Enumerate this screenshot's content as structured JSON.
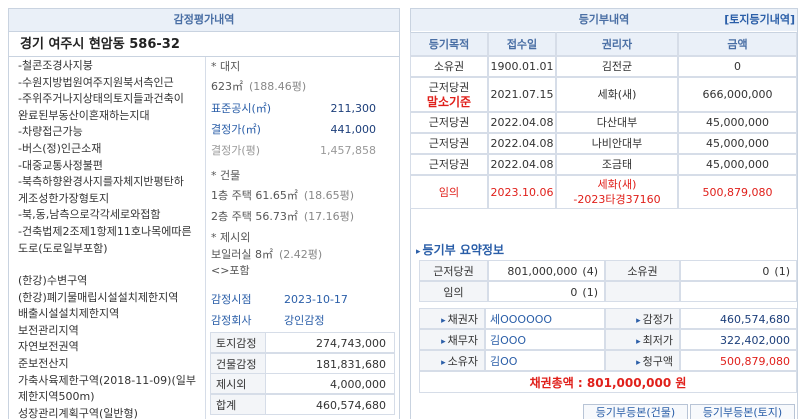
{
  "appraisal": {
    "title": "감정평가내역",
    "address": "경기 여주시 현암동 586-32",
    "notes": [
      "-철콘조경사지붕",
      "-수원지방법원여주지원북서측인근",
      "-주위주거나지상태의토지들과건축이",
      "완료된부동산이혼재하는지대",
      "-차량접근가능",
      "-버스(정)인근소재",
      "-대중교통사정불편",
      "-북측하향완경사지를자체지반평탄하",
      "게조성한가장형토지",
      "-북,동,남측으로각각세로와접함",
      "-건축법제2조제1항제11호나목에따른",
      "도로(도로일부포함)"
    ],
    "zoning": [
      "(한강)수변구역",
      "(한강)폐기물매립시설설치제한지역",
      "배출시설설치제한지역",
      "보전관리지역",
      "자연보전권역",
      "준보전산지",
      "가축사육제한구역(2018-11-09)(일부",
      "제한지역500m)",
      "성장관리계획구역(일반형)"
    ],
    "land_heading": "* 대지",
    "land_area": "623㎡",
    "land_area_pyeong": "(188.46평)",
    "land_prices": [
      [
        "표준공시(㎡)",
        "211,300"
      ],
      [
        "결정가(㎡)",
        "441,000"
      ],
      [
        "결정가(평)",
        "1,457,858"
      ]
    ],
    "building_heading": "* 건물",
    "buildings": [
      [
        "1층 주택 61.65㎡",
        "(18.65평)"
      ],
      [
        "2층 주택 56.73㎡",
        "(17.16평)"
      ]
    ],
    "extra_heading": "* 제시외",
    "extras": [
      [
        "보일러실 8㎡",
        "(2.42평)"
      ]
    ],
    "extra_note": "<>포함",
    "info": [
      [
        "감정시점",
        "2023-10-17"
      ],
      [
        "감정회사",
        "강인감정"
      ]
    ],
    "totals": [
      [
        "토지감정",
        "274,743,000"
      ],
      [
        "건물감정",
        "181,831,680"
      ],
      [
        "제시외",
        "4,000,000"
      ],
      [
        "합계",
        "460,574,680"
      ]
    ]
  },
  "registry": {
    "title": "등기부내역",
    "link": "[토지등기내역]",
    "columns": [
      "등기목적",
      "접수일",
      "권리자",
      "금액"
    ],
    "rows": [
      [
        [
          "소유권"
        ],
        [
          "1900.01.01"
        ],
        [
          "김전균"
        ],
        [
          "0"
        ]
      ],
      [
        [
          "근저당권",
          "말소기준"
        ],
        [
          "2021.07.15"
        ],
        [
          "세화(새)"
        ],
        [
          "666,000,000"
        ]
      ],
      [
        [
          "근저당권"
        ],
        [
          "2022.04.08"
        ],
        [
          "다산대부"
        ],
        [
          "45,000,000"
        ]
      ],
      [
        [
          "근저당권"
        ],
        [
          "2022.04.08"
        ],
        [
          "나비안대부"
        ],
        [
          "45,000,000"
        ]
      ],
      [
        [
          "근저당권"
        ],
        [
          "2022.04.08"
        ],
        [
          "조금태"
        ],
        [
          "45,000,000"
        ]
      ],
      [
        [
          "임의"
        ],
        [
          "2023.10.06"
        ],
        [
          "세화(새)",
          "-2023타경37160"
        ],
        [
          "500,879,080"
        ]
      ]
    ],
    "summary_title": "등기부 요약정보",
    "summary": [
      {
        "label": "근저당권",
        "amount": "801,000,000",
        "count": "(4)"
      },
      {
        "label": "소유권",
        "amount": "0",
        "count": "(1)"
      },
      {
        "label": "임의",
        "amount": "0",
        "count": "(1)"
      }
    ],
    "parties": [
      [
        "채권자",
        "세OOOOOO"
      ],
      [
        "채무자",
        "김OOO"
      ],
      [
        "소유자",
        "김OO"
      ]
    ],
    "amounts": [
      [
        "감정가",
        "460,574,680"
      ],
      [
        "최저가",
        "322,402,000"
      ],
      [
        "청구액",
        "500,879,080"
      ]
    ],
    "total": "채권총액 : 801,000,000 원",
    "buttons": [
      "등기부등본(건물)",
      "등기부등본(토지)"
    ]
  }
}
